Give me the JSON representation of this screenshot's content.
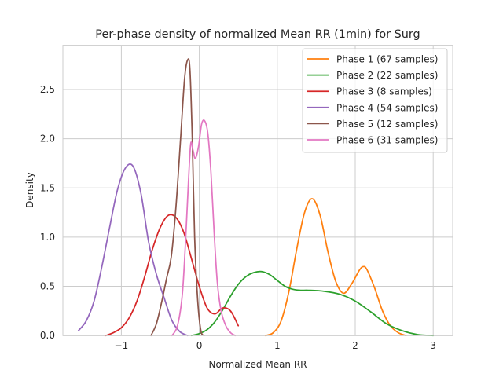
{
  "chart_data": {
    "type": "line",
    "title": "Per-phase density of normalized Mean RR (1min) for Surg",
    "xlabel": "Normalized Mean RR",
    "ylabel": "Density",
    "xlim": [
      -1.75,
      3.25
    ],
    "ylim": [
      0,
      2.95
    ],
    "xticks": [
      -1,
      0,
      1,
      2,
      3
    ],
    "yticks": [
      0.0,
      0.5,
      1.0,
      1.5,
      2.0,
      2.5
    ],
    "xtick_labels": [
      "−1",
      "0",
      "1",
      "2",
      "3"
    ],
    "ytick_labels": [
      "0.0",
      "0.5",
      "1.0",
      "1.5",
      "2.0",
      "2.5"
    ],
    "grid": true,
    "legend_position": "top-right",
    "series": [
      {
        "name": "Phase 1 (67 samples)",
        "color": "#ff7f0e",
        "x": [
          0.85,
          0.95,
          1.05,
          1.15,
          1.25,
          1.35,
          1.45,
          1.55,
          1.65,
          1.75,
          1.85,
          1.95,
          2.05,
          2.1,
          2.15,
          2.25,
          2.35,
          2.45,
          2.55,
          2.65
        ],
        "y": [
          0.0,
          0.03,
          0.15,
          0.45,
          0.88,
          1.25,
          1.39,
          1.22,
          0.85,
          0.55,
          0.43,
          0.52,
          0.66,
          0.7,
          0.67,
          0.48,
          0.25,
          0.1,
          0.03,
          0.0
        ]
      },
      {
        "name": "Phase 2 (22 samples)",
        "color": "#2ca02c",
        "x": [
          -0.1,
          0.0,
          0.1,
          0.2,
          0.3,
          0.4,
          0.5,
          0.6,
          0.7,
          0.8,
          0.9,
          1.0,
          1.1,
          1.2,
          1.3,
          1.4,
          1.6,
          1.8,
          2.0,
          2.2,
          2.4,
          2.6,
          2.8,
          3.0
        ],
        "y": [
          0.0,
          0.02,
          0.06,
          0.14,
          0.26,
          0.4,
          0.52,
          0.6,
          0.64,
          0.65,
          0.62,
          0.56,
          0.5,
          0.47,
          0.46,
          0.46,
          0.45,
          0.42,
          0.35,
          0.24,
          0.12,
          0.05,
          0.01,
          0.0
        ]
      },
      {
        "name": "Phase 3 (8 samples)",
        "color": "#d62728",
        "x": [
          -1.2,
          -1.1,
          -1.0,
          -0.9,
          -0.8,
          -0.7,
          -0.6,
          -0.5,
          -0.4,
          -0.3,
          -0.2,
          -0.1,
          0.0,
          0.1,
          0.2,
          0.3,
          0.4,
          0.5
        ],
        "y": [
          0.0,
          0.03,
          0.08,
          0.18,
          0.35,
          0.6,
          0.88,
          1.1,
          1.22,
          1.2,
          1.05,
          0.78,
          0.5,
          0.28,
          0.22,
          0.28,
          0.25,
          0.1
        ]
      },
      {
        "name": "Phase 4 (54 samples)",
        "color": "#9467bd",
        "x": [
          -1.55,
          -1.45,
          -1.35,
          -1.25,
          -1.15,
          -1.05,
          -0.95,
          -0.85,
          -0.75,
          -0.65,
          -0.55,
          -0.45,
          -0.35,
          -0.25,
          -0.15
        ],
        "y": [
          0.05,
          0.15,
          0.35,
          0.7,
          1.1,
          1.48,
          1.7,
          1.72,
          1.45,
          0.95,
          0.62,
          0.38,
          0.15,
          0.04,
          0.0
        ]
      },
      {
        "name": "Phase 5 (12 samples)",
        "color": "#8c564b",
        "x": [
          -0.62,
          -0.55,
          -0.48,
          -0.42,
          -0.36,
          -0.3,
          -0.24,
          -0.19,
          -0.15,
          -0.12,
          -0.09,
          -0.06,
          -0.02,
          0.02,
          0.06
        ],
        "y": [
          0.0,
          0.12,
          0.35,
          0.58,
          0.8,
          1.3,
          2.0,
          2.6,
          2.8,
          2.7,
          2.0,
          1.0,
          0.35,
          0.05,
          0.0
        ]
      },
      {
        "name": "Phase 6 (31 samples)",
        "color": "#e377c2",
        "x": [
          -0.35,
          -0.28,
          -0.22,
          -0.18,
          -0.14,
          -0.11,
          -0.08,
          -0.05,
          -0.01,
          0.03,
          0.07,
          0.11,
          0.15,
          0.19,
          0.23,
          0.28,
          0.34,
          0.4,
          0.46
        ],
        "y": [
          0.0,
          0.1,
          0.4,
          0.9,
          1.55,
          1.95,
          1.88,
          1.8,
          1.92,
          2.15,
          2.18,
          2.05,
          1.65,
          1.05,
          0.55,
          0.25,
          0.1,
          0.03,
          0.0
        ]
      }
    ]
  }
}
